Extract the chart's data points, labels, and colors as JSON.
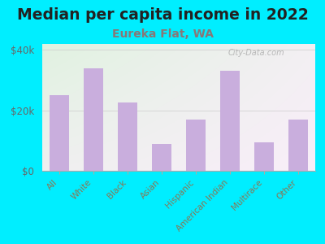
{
  "title": "Median per capita income in 2022",
  "subtitle": "Eureka Flat, WA",
  "categories": [
    "All",
    "White",
    "Black",
    "Asian",
    "Hispanic",
    "American Indian",
    "Multirace",
    "Other"
  ],
  "values": [
    25000,
    34000,
    22500,
    9000,
    17000,
    33000,
    9500,
    17000
  ],
  "bar_color": "#c9aedd",
  "background_outer": "#00eeff",
  "title_color": "#222222",
  "subtitle_color": "#887777",
  "tick_label_color": "#666666",
  "axis_label_color": "#887755",
  "ylim": [
    0,
    42000
  ],
  "yticks": [
    0,
    20000,
    40000
  ],
  "ytick_labels": [
    "$0",
    "$20k",
    "$40k"
  ],
  "watermark": "City-Data.com",
  "title_fontsize": 13.5,
  "subtitle_fontsize": 10
}
